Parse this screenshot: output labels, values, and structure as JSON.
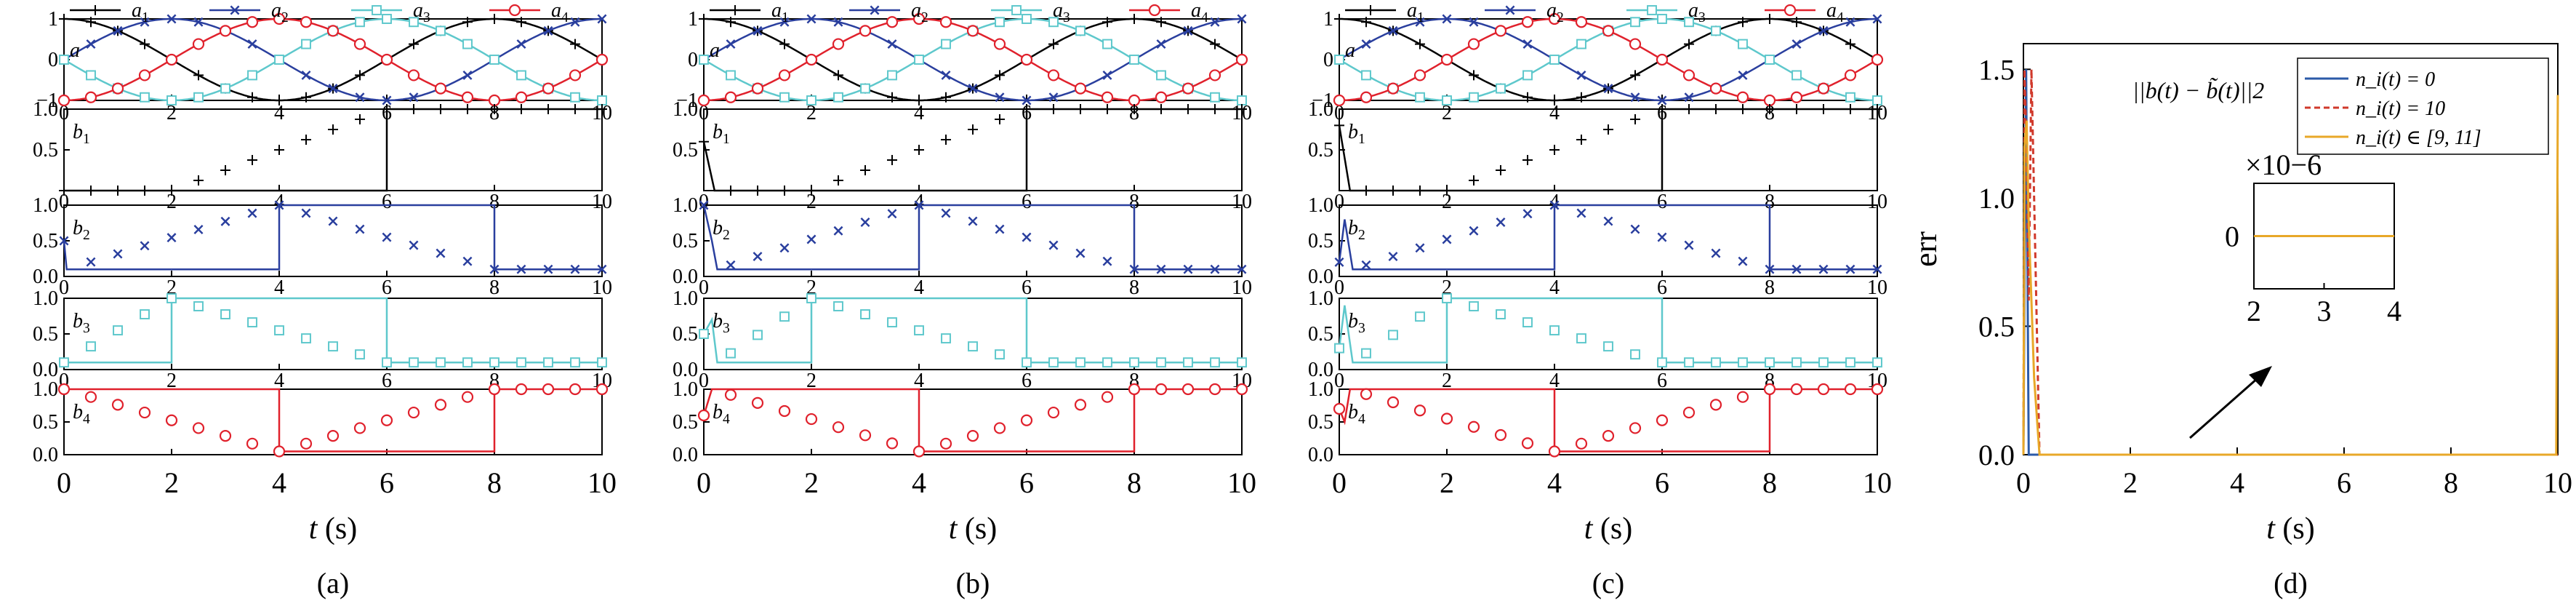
{
  "colors": {
    "a1": "#000000",
    "a2": "#2a3f9e",
    "a3": "#5ec8cc",
    "a4": "#e0212c",
    "d_s1": "#2b5aa8",
    "d_s2": "#d0392b",
    "d_s3": "#e8a828",
    "axis": "#000000"
  },
  "chart_data": [
    {
      "type": "line",
      "panel_label": "(a)",
      "xlabel": "t (s)",
      "x_ticks": [
        "0",
        "2",
        "4",
        "6",
        "8",
        "10"
      ],
      "xlim": [
        0,
        10
      ],
      "subplots": [
        {
          "label": "a",
          "ylim": [
            -1,
            1
          ],
          "y_ticks": [
            "1",
            "0",
            "−1"
          ],
          "legend": [
            "a1",
            "a2",
            "a3",
            "a4"
          ],
          "series": [
            {
              "name": "a1",
              "marker": "plus",
              "function": "cos(pi*t/4)"
            },
            {
              "name": "a2",
              "marker": "x",
              "function": "sin(pi*t/4)"
            },
            {
              "name": "a3",
              "marker": "square",
              "function": "-sin(pi*t/4)"
            },
            {
              "name": "a4",
              "marker": "circle",
              "function": "-cos(pi*t/4)"
            }
          ]
        },
        {
          "label": "b1",
          "series_key": "a1",
          "marker": "plus",
          "ylim": [
            0,
            1
          ],
          "y_ticks": [
            "0.5",
            "1.0"
          ],
          "steps": [
            [
              0,
              0
            ],
            [
              2,
              0
            ],
            [
              6,
              1
            ],
            [
              10,
              1
            ]
          ]
        },
        {
          "label": "b2",
          "series_key": "a2",
          "marker": "x",
          "ylim": [
            0,
            1
          ],
          "y_ticks": [
            "0.0",
            "0.5",
            "1.0"
          ],
          "steps": [
            [
              0,
              0.5
            ],
            [
              0.05,
              0.1
            ],
            [
              4,
              1
            ],
            [
              8,
              0.1
            ],
            [
              10,
              0.1
            ]
          ]
        },
        {
          "label": "b3",
          "series_key": "a3",
          "marker": "square",
          "ylim": [
            0,
            1
          ],
          "y_ticks": [
            "0.0",
            "0.5",
            "1.0"
          ],
          "steps": [
            [
              0,
              0.1
            ],
            [
              2,
              1
            ],
            [
              6,
              0.1
            ],
            [
              10,
              0.1
            ]
          ]
        },
        {
          "label": "b4",
          "series_key": "a4",
          "marker": "circle",
          "ylim": [
            0,
            1
          ],
          "y_ticks": [
            "0.0",
            "0.5",
            "1.0"
          ],
          "steps": [
            [
              0,
              1
            ],
            [
              4,
              0.05
            ],
            [
              8,
              1
            ],
            [
              10,
              1
            ]
          ]
        }
      ]
    },
    {
      "type": "line",
      "panel_label": "(b)",
      "xlabel": "t (s)",
      "x_ticks": [
        "0",
        "2",
        "4",
        "6",
        "8",
        "10"
      ],
      "xlim": [
        0,
        10
      ],
      "subplots": [
        {
          "label": "a",
          "ylim": [
            -1,
            1
          ],
          "y_ticks": [
            "1",
            "0",
            "−1"
          ],
          "legend": [
            "a1",
            "a2",
            "a3",
            "a4"
          ],
          "series": [
            {
              "name": "a1",
              "marker": "plus",
              "function": "cos(pi*t/4)"
            },
            {
              "name": "a2",
              "marker": "x",
              "function": "sin(pi*t/4)"
            },
            {
              "name": "a3",
              "marker": "square",
              "function": "-sin(pi*t/4)"
            },
            {
              "name": "a4",
              "marker": "circle",
              "function": "-cos(pi*t/4)"
            }
          ]
        },
        {
          "label": "b1",
          "series_key": "a1",
          "marker": "plus",
          "ylim": [
            0,
            1
          ],
          "y_ticks": [
            "0.5",
            "1.0"
          ],
          "steps": [
            [
              0,
              0.6
            ],
            [
              0.1,
              0.3
            ],
            [
              0.2,
              0
            ],
            [
              2,
              0
            ],
            [
              6,
              1
            ],
            [
              10,
              1
            ]
          ]
        },
        {
          "label": "b2",
          "series_key": "a2",
          "marker": "x",
          "ylim": [
            0,
            1
          ],
          "y_ticks": [
            "0.0",
            "0.5",
            "1.0"
          ],
          "steps": [
            [
              0,
              1
            ],
            [
              0.15,
              0.5
            ],
            [
              0.25,
              0.1
            ],
            [
              4,
              1
            ],
            [
              8,
              0.1
            ],
            [
              10,
              0.1
            ]
          ]
        },
        {
          "label": "b3",
          "series_key": "a3",
          "marker": "square",
          "ylim": [
            0,
            1
          ],
          "y_ticks": [
            "0.0",
            "0.5",
            "1.0"
          ],
          "steps": [
            [
              0,
              0.5
            ],
            [
              0.15,
              0.7
            ],
            [
              0.25,
              0.1
            ],
            [
              2,
              1
            ],
            [
              6,
              0.1
            ],
            [
              10,
              0.1
            ]
          ]
        },
        {
          "label": "b4",
          "series_key": "a4",
          "marker": "circle",
          "ylim": [
            0,
            1
          ],
          "y_ticks": [
            "0.0",
            "0.5",
            "1.0"
          ],
          "steps": [
            [
              0,
              0.6
            ],
            [
              0.15,
              1
            ],
            [
              4,
              0.05
            ],
            [
              8,
              1
            ],
            [
              10,
              1
            ]
          ]
        }
      ]
    },
    {
      "type": "line",
      "panel_label": "(c)",
      "xlabel": "t (s)",
      "x_ticks": [
        "0",
        "2",
        "4",
        "6",
        "8",
        "10"
      ],
      "xlim": [
        0,
        10
      ],
      "subplots": [
        {
          "label": "a",
          "ylim": [
            -1,
            1
          ],
          "y_ticks": [
            "1",
            "0",
            "−1"
          ],
          "legend": [
            "a1",
            "a2",
            "a3",
            "a4"
          ],
          "series": [
            {
              "name": "a1",
              "marker": "plus",
              "function": "cos(pi*t/4)"
            },
            {
              "name": "a2",
              "marker": "x",
              "function": "sin(pi*t/4)"
            },
            {
              "name": "a3",
              "marker": "square",
              "function": "-sin(pi*t/4)"
            },
            {
              "name": "a4",
              "marker": "circle",
              "function": "-cos(pi*t/4)"
            }
          ]
        },
        {
          "label": "b1",
          "series_key": "a1",
          "marker": "plus",
          "ylim": [
            0,
            1
          ],
          "y_ticks": [
            "0.5",
            "1.0"
          ],
          "steps": [
            [
              0,
              0.8
            ],
            [
              0.1,
              0.4
            ],
            [
              0.2,
              0
            ],
            [
              2,
              0
            ],
            [
              6,
              1
            ],
            [
              10,
              1
            ]
          ]
        },
        {
          "label": "b2",
          "series_key": "a2",
          "marker": "x",
          "ylim": [
            0,
            1
          ],
          "y_ticks": [
            "0.0",
            "0.5",
            "1.0"
          ],
          "steps": [
            [
              0,
              0.2
            ],
            [
              0.1,
              0.8
            ],
            [
              0.25,
              0.1
            ],
            [
              4,
              1
            ],
            [
              8,
              0.1
            ],
            [
              10,
              0.1
            ]
          ]
        },
        {
          "label": "b3",
          "series_key": "a3",
          "marker": "square",
          "ylim": [
            0,
            1
          ],
          "y_ticks": [
            "0.0",
            "0.5",
            "1.0"
          ],
          "steps": [
            [
              0,
              0.3
            ],
            [
              0.1,
              0.9
            ],
            [
              0.25,
              0.1
            ],
            [
              2,
              1
            ],
            [
              6,
              0.1
            ],
            [
              10,
              0.1
            ]
          ]
        },
        {
          "label": "b4",
          "series_key": "a4",
          "marker": "circle",
          "ylim": [
            0,
            1
          ],
          "y_ticks": [
            "0.0",
            "0.5",
            "1.0"
          ],
          "steps": [
            [
              0,
              0.7
            ],
            [
              0.1,
              0.5
            ],
            [
              0.2,
              1
            ],
            [
              4,
              0.05
            ],
            [
              8,
              1
            ],
            [
              10,
              1
            ]
          ]
        }
      ]
    },
    {
      "type": "line",
      "panel_label": "(d)",
      "xlabel": "t (s)",
      "ylabel": "err",
      "annotation": "||b(t) − b̃(t)||2",
      "xlim": [
        0,
        10
      ],
      "ylim": [
        0,
        1.6
      ],
      "x_ticks": [
        "0",
        "2",
        "4",
        "6",
        "8",
        "10"
      ],
      "y_ticks": [
        "0.0",
        "0.5",
        "1.0",
        "1.5"
      ],
      "legend": [
        "n_i(t) = 0",
        "n_i(t) = 10",
        "n_i(t) ∈ [9, 11]"
      ],
      "series": [
        {
          "name": "n_i(t) = 0",
          "style": "solid",
          "points": [
            [
              0,
              0
            ],
            [
              0.02,
              0.7
            ],
            [
              0.05,
              1.5
            ],
            [
              0.1,
              0
            ],
            [
              10,
              0
            ]
          ]
        },
        {
          "name": "n_i(t) = 10",
          "style": "dashed",
          "points": [
            [
              0,
              0
            ],
            [
              0.02,
              1.5
            ],
            [
              0.05,
              1.25
            ],
            [
              0.1,
              0.6
            ],
            [
              0.15,
              1.5
            ],
            [
              0.2,
              1.0
            ],
            [
              0.3,
              0
            ],
            [
              10,
              0
            ]
          ]
        },
        {
          "name": "n_i(t) ∈ [9, 11]",
          "style": "solid",
          "points": [
            [
              0,
              0
            ],
            [
              0.02,
              1.2
            ],
            [
              0.06,
              1.3
            ],
            [
              0.1,
              0.9
            ],
            [
              0.2,
              0.3
            ],
            [
              0.3,
              0
            ],
            [
              9.97,
              0
            ],
            [
              10,
              1.4
            ]
          ]
        }
      ],
      "inset": {
        "xlim": [
          2,
          4
        ],
        "x_ticks": [
          "2",
          "3",
          "4"
        ],
        "y_ticks": [
          "0"
        ],
        "y_multiplier": "×10−6",
        "series_value": 0
      }
    }
  ]
}
